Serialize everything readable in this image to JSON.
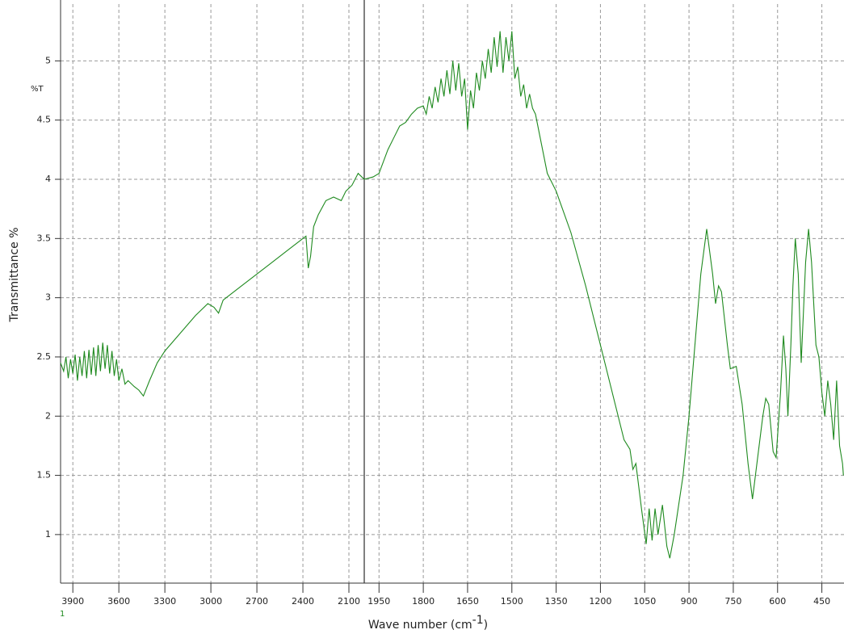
{
  "chart_data": {
    "type": "line",
    "y_unit_label": "%T",
    "y_label": "Transmittance %",
    "x_label": "Wave number (cm",
    "x_label_sup": "-1",
    "x_label_end": ")",
    "series_label": "1",
    "color": "#1f8a1f",
    "x_break": 2000,
    "grid": true,
    "xlim": [
      3980,
      375
    ],
    "ylim": [
      0.59,
      5.48
    ],
    "xticks": [
      3900,
      3600,
      3300,
      3000,
      2700,
      2400,
      2100,
      1950,
      1800,
      1650,
      1500,
      1350,
      1200,
      1050,
      900,
      750,
      600,
      450
    ],
    "yticks": [
      1,
      1.5,
      2,
      2.5,
      3,
      3.5,
      4,
      4.5,
      5
    ],
    "x": [
      3980,
      3960,
      3945,
      3930,
      3915,
      3900,
      3885,
      3870,
      3855,
      3840,
      3825,
      3810,
      3795,
      3780,
      3765,
      3750,
      3735,
      3720,
      3705,
      3690,
      3675,
      3660,
      3645,
      3630,
      3615,
      3600,
      3580,
      3560,
      3540,
      3500,
      3470,
      3440,
      3400,
      3350,
      3300,
      3200,
      3100,
      3020,
      2980,
      2950,
      2920,
      2880,
      2800,
      2700,
      2600,
      2500,
      2400,
      2380,
      2365,
      2350,
      2330,
      2300,
      2250,
      2200,
      2150,
      2120,
      2080,
      2040,
      2000,
      1970,
      1950,
      1920,
      1900,
      1880,
      1860,
      1840,
      1820,
      1800,
      1790,
      1780,
      1770,
      1760,
      1750,
      1740,
      1730,
      1720,
      1710,
      1700,
      1690,
      1680,
      1670,
      1660,
      1650,
      1640,
      1630,
      1620,
      1610,
      1600,
      1590,
      1580,
      1570,
      1560,
      1550,
      1540,
      1530,
      1520,
      1510,
      1500,
      1490,
      1480,
      1470,
      1460,
      1450,
      1440,
      1430,
      1420,
      1400,
      1380,
      1350,
      1300,
      1250,
      1200,
      1150,
      1120,
      1100,
      1090,
      1080,
      1060,
      1045,
      1035,
      1025,
      1015,
      1005,
      990,
      975,
      965,
      950,
      920,
      900,
      880,
      860,
      840,
      820,
      810,
      800,
      790,
      770,
      760,
      740,
      720,
      700,
      685,
      670,
      650,
      640,
      630,
      615,
      605,
      590,
      580,
      572,
      565,
      555,
      548,
      540,
      530,
      520,
      512,
      505,
      495,
      485,
      470,
      460,
      450,
      440,
      430,
      420,
      410,
      400,
      390,
      380,
      377
    ],
    "values": [
      2.45,
      2.38,
      2.5,
      2.32,
      2.48,
      2.36,
      2.52,
      2.3,
      2.5,
      2.34,
      2.55,
      2.32,
      2.56,
      2.35,
      2.58,
      2.34,
      2.6,
      2.38,
      2.62,
      2.4,
      2.6,
      2.36,
      2.55,
      2.34,
      2.48,
      2.3,
      2.4,
      2.27,
      2.3,
      2.25,
      2.22,
      2.17,
      2.3,
      2.45,
      2.55,
      2.7,
      2.85,
      2.95,
      2.92,
      2.87,
      2.98,
      3.02,
      3.1,
      3.2,
      3.3,
      3.4,
      3.5,
      3.52,
      3.25,
      3.35,
      3.6,
      3.7,
      3.82,
      3.85,
      3.82,
      3.9,
      3.95,
      4.05,
      4.0,
      4.02,
      4.05,
      4.25,
      4.35,
      4.45,
      4.48,
      4.55,
      4.6,
      4.62,
      4.55,
      4.7,
      4.6,
      4.78,
      4.65,
      4.85,
      4.7,
      4.92,
      4.72,
      5.0,
      4.75,
      4.98,
      4.7,
      4.85,
      4.42,
      4.75,
      4.6,
      4.9,
      4.75,
      5.0,
      4.85,
      5.1,
      4.9,
      5.2,
      4.95,
      5.25,
      4.9,
      5.2,
      5.0,
      5.25,
      4.85,
      4.95,
      4.7,
      4.8,
      4.6,
      4.72,
      4.6,
      4.55,
      4.3,
      4.05,
      3.9,
      3.55,
      3.1,
      2.6,
      2.1,
      1.8,
      1.72,
      1.55,
      1.6,
      1.2,
      0.92,
      1.22,
      0.95,
      1.22,
      1.0,
      1.25,
      0.9,
      0.8,
      1.0,
      1.5,
      2.0,
      2.6,
      3.2,
      3.58,
      3.2,
      2.95,
      3.1,
      3.05,
      2.6,
      2.4,
      2.42,
      2.1,
      1.6,
      1.3,
      1.6,
      2.0,
      2.15,
      2.1,
      1.7,
      1.65,
      2.2,
      2.68,
      2.4,
      2.0,
      2.6,
      3.1,
      3.5,
      3.2,
      2.45,
      2.9,
      3.3,
      3.58,
      3.3,
      2.6,
      2.5,
      2.2,
      2.0,
      2.3,
      2.1,
      1.8,
      2.3,
      1.75,
      1.6,
      1.5
    ]
  }
}
